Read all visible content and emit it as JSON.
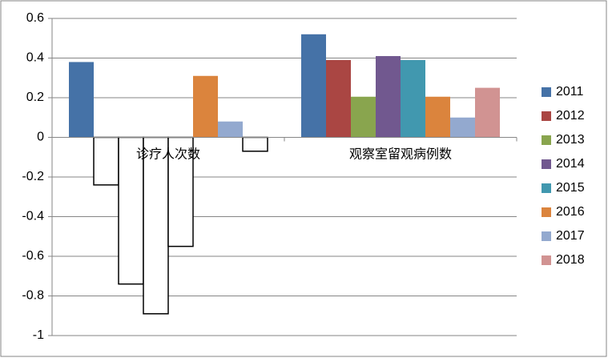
{
  "chart_data": {
    "type": "bar",
    "categories": [
      "诊疗人次数",
      "观察室留观病例数"
    ],
    "series": [
      {
        "name": "2011",
        "color": "#4572a7",
        "values": [
          0.38,
          0.52
        ]
      },
      {
        "name": "2012",
        "color": "#aa4643",
        "values": [
          -0.24,
          0.39
        ]
      },
      {
        "name": "2013",
        "color": "#89a54e",
        "values": [
          -0.74,
          0.205
        ]
      },
      {
        "name": "2014",
        "color": "#71588f",
        "values": [
          -0.89,
          0.41
        ]
      },
      {
        "name": "2015",
        "color": "#4198af",
        "values": [
          -0.55,
          0.39
        ]
      },
      {
        "name": "2016",
        "color": "#db843d",
        "values": [
          0.31,
          0.205
        ]
      },
      {
        "name": "2017",
        "color": "#93a9cf",
        "values": [
          0.08,
          0.1
        ]
      },
      {
        "name": "2018",
        "color": "#d19392",
        "values": [
          -0.07,
          0.25
        ]
      }
    ],
    "invert_if_negative": true,
    "ylim": [
      -1,
      0.6
    ],
    "yticks": [
      -1,
      -0.8,
      -0.6,
      -0.4,
      -0.2,
      0,
      0.2,
      0.4,
      0.6
    ],
    "grid": true,
    "legend": "right"
  }
}
